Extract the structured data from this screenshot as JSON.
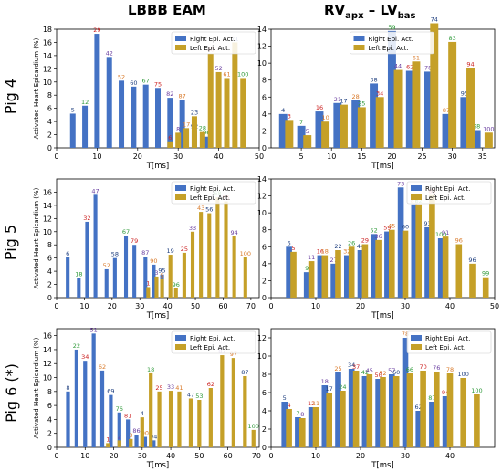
{
  "columns": {
    "left_title": "LBBB EAM",
    "right_title_main": "RV",
    "right_title_sub1": "apx",
    "right_title_mid": " – LV",
    "right_title_sub2": "bas"
  },
  "rows": {
    "pig4": "Pig 4",
    "pig5": "Pig 5",
    "pig6": "Pig 6 (*)"
  },
  "colors": {
    "right": "#4472c4",
    "left": "#c5a028",
    "label_blue": "#1f3f7f",
    "label_green": "#2f9a3a",
    "label_red": "#cc2222",
    "label_purple": "#6a3fa0",
    "label_orange": "#d97a2a"
  },
  "chart_data": [
    {
      "id": "pig4-lbbb",
      "type": "bar",
      "ylabel": "Activated Heart Epicardium (%)",
      "xlabel": "T[ms]",
      "xlim": [
        0,
        50
      ],
      "ylim": [
        0,
        18
      ],
      "xticks": [
        0,
        10,
        20,
        30,
        40,
        50
      ],
      "yticks": [
        0,
        2,
        4,
        6,
        8,
        10,
        12,
        14,
        16,
        18
      ],
      "legend": "top-right",
      "series": [
        {
          "name": "Right Epi. Act.",
          "x": [
            4,
            7,
            10,
            13,
            16,
            19,
            22,
            25,
            28,
            31,
            34,
            37
          ],
          "values": [
            5.2,
            6.4,
            17.3,
            13.8,
            10.2,
            9.3,
            9.6,
            9.1,
            7.6,
            7.3,
            2.7,
            1.7
          ],
          "labels": [
            "5",
            "12",
            "29",
            "42",
            "52",
            "60",
            "67",
            "75",
            "82",
            "87",
            "92",
            "96"
          ]
        },
        {
          "name": "Left Epi. Act.",
          "x": [
            28,
            30,
            32,
            34,
            36,
            38,
            40,
            42,
            44,
            46
          ],
          "values": [
            1.0,
            2.3,
            3.0,
            4.8,
            2.4,
            14.3,
            11.5,
            10.6,
            16.0,
            10.6
          ],
          "labels": [
            "6",
            "8",
            "17",
            "23",
            "28",
            "40",
            "52",
            "61",
            "71",
            "100"
          ]
        }
      ]
    },
    {
      "id": "pig4-rv",
      "type": "bar",
      "xlabel": "T[ms]",
      "xlim": [
        0,
        37
      ],
      "ylim": [
        0,
        14
      ],
      "xticks": [
        5,
        10,
        15,
        20,
        25,
        30,
        35
      ],
      "yticks": [
        0,
        2,
        4,
        6,
        8,
        10,
        12,
        14
      ],
      "legend": "top-center",
      "series": [
        {
          "name": "Right Epi. Act.",
          "x": [
            2,
            5,
            8,
            11,
            14,
            17,
            20,
            23,
            26,
            29,
            32,
            34
          ],
          "values": [
            4.0,
            2.6,
            4.3,
            5.3,
            5.6,
            7.6,
            13.8,
            9.1,
            9.0,
            4.0,
            6.0,
            2.1
          ],
          "labels": [
            "4",
            "7",
            "16",
            "21",
            "28",
            "38",
            "59",
            "62",
            "78",
            "87",
            "95",
            "98"
          ]
        },
        {
          "name": "Left Epi. Act.",
          "x": [
            3,
            6,
            9,
            12,
            15,
            18,
            21,
            24,
            27,
            30,
            33,
            36
          ],
          "values": [
            3.3,
            1.5,
            3.1,
            5.1,
            4.8,
            6.0,
            9.2,
            10.2,
            14.7,
            12.5,
            9.4,
            1.8
          ],
          "labels": [
            "3",
            "5",
            "10",
            "17",
            "25",
            "34",
            "44",
            "61",
            "74",
            "83",
            "94",
            "100"
          ]
        }
      ]
    },
    {
      "id": "pig5-lbbb",
      "type": "bar",
      "ylabel": "Activated Heart Epicardium (%)",
      "xlabel": "T[ms]",
      "xlim": [
        0,
        73
      ],
      "ylim": [
        0,
        18
      ],
      "xticks": [
        0,
        10,
        20,
        30,
        40,
        50,
        60,
        70
      ],
      "yticks": [
        0,
        2,
        4,
        6,
        8,
        10,
        12,
        14,
        16
      ],
      "legend": "top-right",
      "series": [
        {
          "name": "Right Epi. Act.",
          "x": [
            4,
            8,
            11,
            14,
            18,
            21,
            25,
            28,
            32,
            35,
            38
          ],
          "values": [
            6.1,
            3.0,
            11.5,
            15.6,
            4.3,
            6.0,
            9.4,
            8.0,
            6.2,
            5.0,
            3.5
          ],
          "labels": [
            "6",
            "18",
            "32",
            "47",
            "52",
            "58",
            "67",
            "79",
            "87",
            "90",
            "95"
          ]
        },
        {
          "name": "Left Epi. Act.",
          "x": [
            33,
            36,
            38,
            41,
            43,
            46,
            49,
            52,
            55,
            58,
            61,
            64,
            68
          ],
          "values": [
            1.6,
            3.2,
            2.8,
            6.5,
            1.4,
            6.8,
            10.0,
            13.0,
            12.8,
            15.2,
            14.6,
            9.3,
            6.1
          ],
          "labels": [
            "1",
            "3",
            "5",
            "19",
            "96",
            "25",
            "33",
            "43",
            "56",
            "68",
            "85",
            "94",
            "100"
          ]
        }
      ]
    },
    {
      "id": "pig5-rv",
      "type": "bar",
      "xlabel": "T[ms]",
      "xlim": [
        0,
        50
      ],
      "ylim": [
        0,
        14
      ],
      "xticks": [
        0,
        10,
        20,
        30,
        40,
        50
      ],
      "yticks": [
        0,
        2,
        4,
        6,
        8,
        10,
        12,
        14
      ],
      "legend": "top-right",
      "series": [
        {
          "name": "Right Epi. Act.",
          "x": [
            4,
            8,
            11,
            14,
            17,
            20,
            23,
            26,
            29,
            32,
            35,
            38
          ],
          "values": [
            6.0,
            3.0,
            5.0,
            4.0,
            5.0,
            5.6,
            7.5,
            7.8,
            13.0,
            11.0,
            8.3,
            7.0
          ],
          "labels": [
            "6",
            "9",
            "16",
            "27",
            "32",
            "44",
            "52",
            "59",
            "73",
            "87",
            "93",
            "100"
          ]
        },
        {
          "name": "Left Epi. Act.",
          "x": [
            5,
            9,
            12,
            15,
            18,
            21,
            24,
            27,
            30,
            33,
            36,
            39,
            42,
            45,
            48
          ],
          "values": [
            5.4,
            4.3,
            5.0,
            5.6,
            6.0,
            6.3,
            6.8,
            8.0,
            7.9,
            11.0,
            12.1,
            7.2,
            6.3,
            4.0,
            2.4
          ],
          "labels": [
            "5",
            "11",
            "18",
            "22",
            "26",
            "29",
            "36",
            "45",
            "60",
            "62",
            "85",
            "91",
            "96",
            "96",
            "99"
          ]
        }
      ]
    },
    {
      "id": "pig6-lbbb",
      "type": "bar",
      "ylabel": "Activated Heart Epicardium (%)",
      "xlabel": "T[ms]",
      "xlim": [
        0,
        71
      ],
      "ylim": [
        0,
        17
      ],
      "xticks": [
        0,
        10,
        20,
        30,
        40,
        50,
        60,
        70
      ],
      "yticks": [
        0,
        2,
        4,
        6,
        8,
        10,
        12,
        14,
        16
      ],
      "legend": "top-right",
      "series": [
        {
          "name": "Right Epi. Act.",
          "x": [
            4,
            7,
            10,
            13,
            16,
            19,
            22,
            25,
            28,
            31,
            34
          ],
          "values": [
            8.0,
            14.0,
            12.4,
            16.3,
            11.0,
            7.5,
            5.0,
            4.0,
            1.8,
            1.5,
            1.0
          ],
          "labels": [
            "8",
            "22",
            "34",
            "51",
            "62",
            "69",
            "76",
            "81",
            "86",
            "90",
            "94"
          ]
        },
        {
          "name": "Left Epi. Act.",
          "x": [
            18,
            22,
            26,
            30,
            33,
            36,
            40,
            43,
            47,
            50,
            54,
            58,
            62,
            66,
            69
          ],
          "values": [
            0.6,
            1.0,
            1.2,
            4.3,
            10.6,
            8.0,
            8.1,
            8.0,
            7.0,
            6.8,
            8.5,
            13.2,
            12.8,
            10.2,
            2.5
          ],
          "labels": [
            "1",
            "2",
            "3",
            "4",
            "18",
            "25",
            "33",
            "41",
            "47",
            "53",
            "62",
            "87",
            "97",
            "87",
            "100"
          ]
        }
      ]
    },
    {
      "id": "pig6-rv",
      "type": "bar",
      "xlabel": "T[ms]",
      "xlim": [
        0,
        50
      ],
      "ylim": [
        0,
        13
      ],
      "xticks": [
        0,
        10,
        20,
        30,
        40
      ],
      "yticks": [
        0,
        2,
        4,
        6,
        8,
        10,
        12
      ],
      "legend": "top-right",
      "series": [
        {
          "name": "Right Epi. Act.",
          "x": [
            3,
            6,
            9,
            12,
            15,
            18,
            21,
            24,
            27,
            30,
            33,
            36,
            39
          ],
          "values": [
            5.0,
            3.3,
            4.4,
            6.8,
            8.2,
            8.6,
            7.8,
            7.5,
            8.0,
            12.0,
            4.0,
            5.0,
            5.6
          ],
          "labels": [
            "5",
            "7",
            "12",
            "18",
            "25",
            "34",
            "42",
            "50",
            "57",
            "78",
            "62",
            "87",
            "94"
          ]
        },
        {
          "name": "Left Epi. Act.",
          "x": [
            4,
            7,
            10,
            13,
            16,
            19,
            22,
            25,
            28,
            31,
            34,
            37,
            40,
            43,
            46
          ],
          "values": [
            4.2,
            3.2,
            4.4,
            6.0,
            6.2,
            8.4,
            8.0,
            7.7,
            7.8,
            8.1,
            8.4,
            8.3,
            8.1,
            7.6,
            5.8
          ],
          "labels": [
            "4",
            "8",
            "11",
            "17",
            "24",
            "37",
            "45",
            "52",
            "60",
            "66",
            "70",
            "76",
            "78",
            "100",
            "100"
          ]
        }
      ]
    }
  ]
}
